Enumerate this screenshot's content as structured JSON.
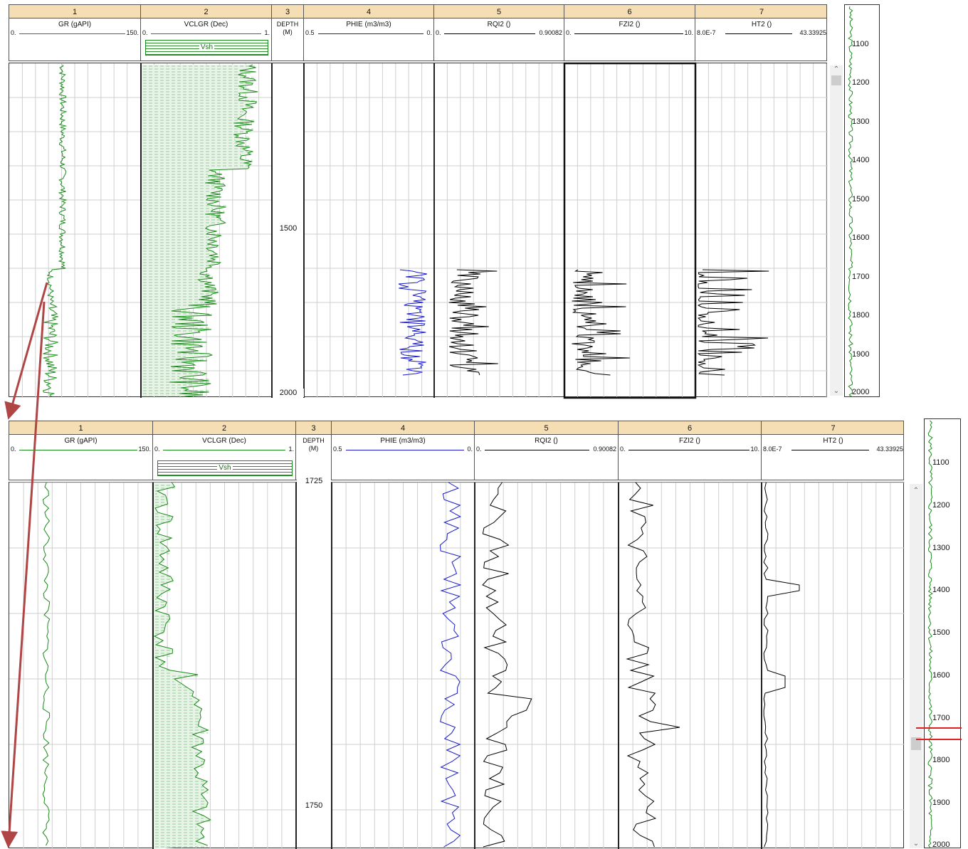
{
  "tracks_panel_1": {
    "numbers": [
      "1",
      "2",
      "3",
      "4",
      "5",
      "6",
      "7"
    ],
    "gr": {
      "title": "GR (gAPI)",
      "min": "0.",
      "max": "150."
    },
    "vclgr": {
      "title": "VCLGR (Dec)",
      "min": "0.",
      "max": "1.",
      "fill_label": "Vsh"
    },
    "depth": {
      "title": "DEPTH",
      "unit": "(M)",
      "ticks": [
        "1500",
        "2000"
      ]
    },
    "phie": {
      "title": "PHIE (m3/m3)",
      "min": "0.5",
      "max": "0."
    },
    "rqi2": {
      "title": "RQI2 ()",
      "min": "0.",
      "max": "0.90082"
    },
    "fzi2": {
      "title": "FZI2 ()",
      "min": "0.",
      "max": "10."
    },
    "ht2": {
      "title": "HT2 ()",
      "min": "8.0E-7",
      "max": "43.33925"
    }
  },
  "tracks_panel_2": {
    "numbers": [
      "1",
      "2",
      "3",
      "4",
      "5",
      "6",
      "7"
    ],
    "gr": {
      "title": "GR (gAPI)",
      "min": "0.",
      "max": "150."
    },
    "vclgr": {
      "title": "VCLGR (Dec)",
      "min": "0.",
      "max": "1.",
      "fill_label": "Vsh"
    },
    "depth": {
      "title": "DEPTH",
      "unit": "(M)",
      "ticks": [
        "1725",
        "1750"
      ]
    },
    "phie": {
      "title": "PHIE (m3/m3)",
      "min": "0.5",
      "max": "0."
    },
    "rqi2": {
      "title": "RQI2 ()",
      "min": "0.",
      "max": "0.90082"
    },
    "fzi2": {
      "title": "FZI2 ()",
      "min": "0.",
      "max": "10."
    },
    "ht2": {
      "title": "HT2 ()",
      "min": "8.0E-7",
      "max": "43.33925"
    }
  },
  "overview_ticks": [
    "1100",
    "1200",
    "1300",
    "1400",
    "1500",
    "1600",
    "1700",
    "1800",
    "1900",
    "2000"
  ],
  "colors": {
    "gr": "#1a8a1a",
    "phie": "#1a1acc",
    "curve": "#000000",
    "arrow": "#b04545",
    "header": "#f5deb3",
    "window": "#e02020"
  },
  "chart_data": [
    {
      "type": "line",
      "title": "",
      "depth_range": [
        1070,
        2000
      ],
      "series": [
        {
          "name": "GR"
        },
        {
          "name": "VCLGR"
        },
        {
          "name": "PHIE"
        },
        {
          "name": "RQI2"
        },
        {
          "name": "FZI2"
        },
        {
          "name": "HT2"
        }
      ]
    },
    {
      "type": "line",
      "title": "",
      "depth_range": [
        1723,
        1754
      ],
      "series": [
        {
          "name": "GR"
        },
        {
          "name": "VCLGR"
        },
        {
          "name": "PHIE"
        },
        {
          "name": "RQI2"
        },
        {
          "name": "FZI2"
        },
        {
          "name": "HT2"
        }
      ]
    }
  ]
}
